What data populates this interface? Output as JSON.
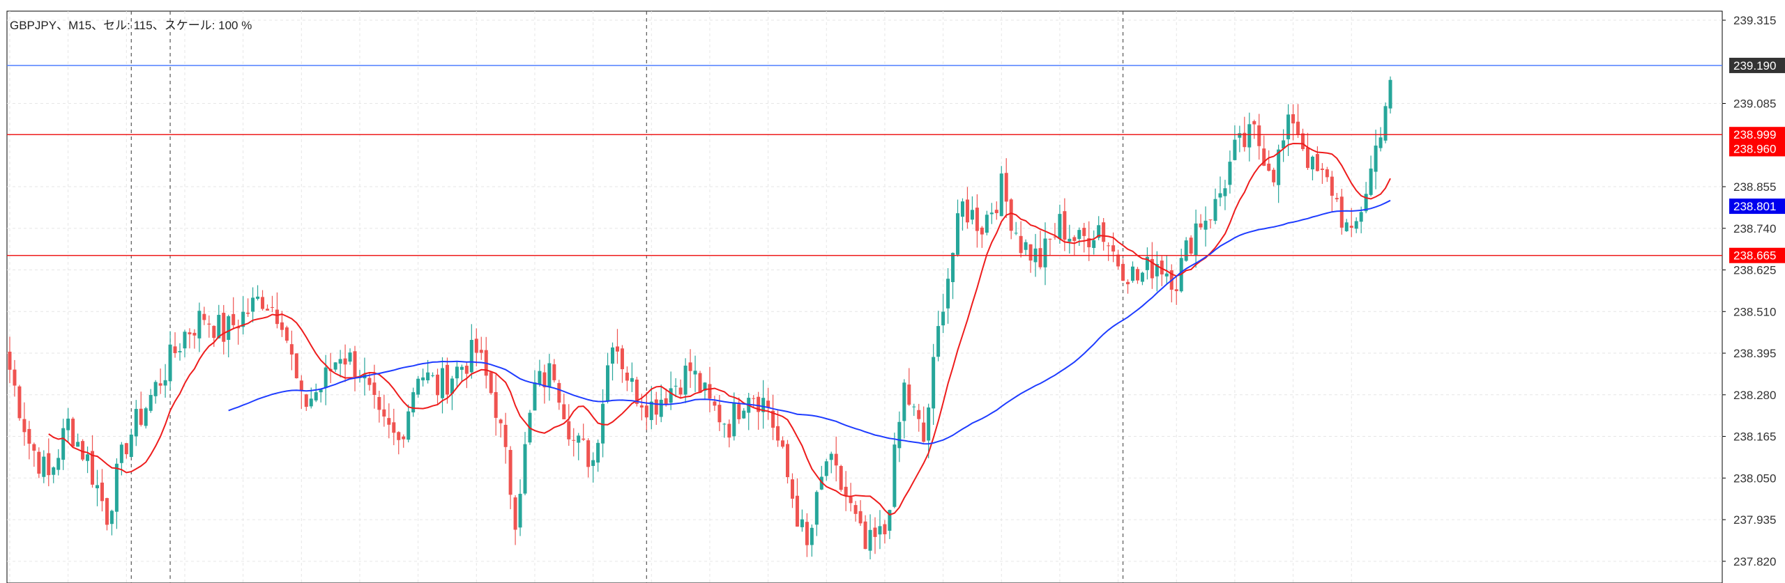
{
  "header": {
    "info": "GBPJPY、M15、セル: 115、スケール: 100 %"
  },
  "colors": {
    "bull": "#26a69a",
    "bear": "#ef5350",
    "ma_fast": "#ee1c1c",
    "ma_slow": "#1e3cff",
    "hline_red": "#ee1c1c",
    "hline_blue": "#4f7fff",
    "grid": "#e6e6e6",
    "vline": "#555555"
  },
  "chart_data": {
    "type": "candlestick",
    "symbol": "GBPJPY",
    "timeframe": "M15",
    "ylim": [
      237.76,
      239.34
    ],
    "y_ticks": [
      "239.315",
      "239.085",
      "238.855",
      "238.740",
      "238.625",
      "238.510",
      "238.395",
      "238.280",
      "238.165",
      "238.050",
      "237.935",
      "237.820"
    ],
    "price_badges": [
      {
        "label": "239.190",
        "value": 239.19,
        "color": "#333333",
        "text_color": "#ffffff"
      },
      {
        "label": "238.999",
        "value": 238.999,
        "color": "#ff0000",
        "text_color": "#ffffff"
      },
      {
        "label": "238.960",
        "value": 238.96,
        "color": "#ff0000",
        "text_color": "#ffffff"
      },
      {
        "label": "238.801",
        "value": 238.801,
        "color": "#0000ee",
        "text_color": "#ffffff"
      },
      {
        "label": "238.665",
        "value": 238.665,
        "color": "#ff0000",
        "text_color": "#ffffff"
      }
    ],
    "horizontal_lines": [
      {
        "value": 239.19,
        "color": "#4f7fff"
      },
      {
        "value": 238.999,
        "color": "#ee1c1c"
      },
      {
        "value": 238.665,
        "color": "#ee1c1c"
      }
    ],
    "vertical_dashed_at_bar": [
      25,
      33,
      131,
      229
    ],
    "ma_fast_label": "",
    "ma_slow_label": "",
    "key_closes": [
      238.35,
      238.15,
      238.05,
      238.2,
      238.1,
      237.95,
      238.15,
      238.25,
      238.35,
      238.45,
      238.5,
      238.45,
      238.5,
      238.55,
      238.5,
      238.25,
      238.3,
      238.4,
      238.35,
      238.2,
      238.15,
      238.35,
      238.3,
      238.35,
      238.4,
      238.25,
      237.95,
      238.3,
      238.35,
      238.15,
      238.1,
      238.45,
      238.3,
      238.25,
      238.3,
      238.35,
      238.25,
      238.2,
      238.3,
      238.25,
      238.05,
      237.85,
      238.1,
      238.0,
      237.85,
      237.9,
      238.3,
      238.15,
      238.55,
      238.8,
      238.75,
      238.85,
      238.7,
      238.65,
      238.75,
      238.7,
      238.75,
      238.65,
      238.6,
      238.65,
      238.6,
      238.75,
      238.8,
      238.95,
      239.0,
      238.9,
      239.05,
      238.9,
      238.85,
      238.7,
      238.9,
      239.15
    ]
  }
}
